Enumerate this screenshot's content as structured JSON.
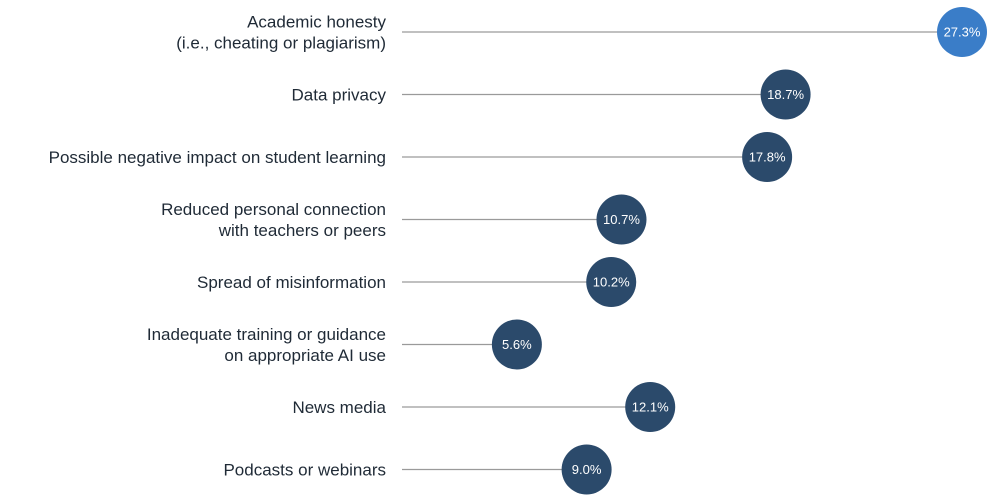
{
  "chart_data": {
    "type": "dot",
    "title": "",
    "xlabel": "",
    "ylabel": "",
    "xlim": [
      0,
      27.3
    ],
    "grid": false,
    "legend": "none",
    "colors": {
      "highlight": "#3a7dc8",
      "default": "#2b4a6b",
      "line": "#9a9a9a"
    },
    "categories": [
      [
        "Academic honesty",
        "(i.e., cheating or plagiarism)"
      ],
      [
        "Data privacy"
      ],
      [
        "Possible negative impact on student learning"
      ],
      [
        "Reduced personal connection",
        "with teachers or peers"
      ],
      [
        "Spread of misinformation"
      ],
      [
        "Inadequate training or guidance",
        "on appropriate AI use"
      ],
      [
        "News media"
      ],
      [
        "Podcasts or webinars"
      ]
    ],
    "values": [
      27.3,
      18.7,
      17.8,
      10.7,
      10.2,
      5.6,
      12.1,
      9.0
    ],
    "value_labels": [
      "27.3%",
      "18.7%",
      "17.8%",
      "10.7%",
      "10.2%",
      "5.6%",
      "12.1%",
      "9.0%"
    ],
    "highlight_index": 0
  }
}
